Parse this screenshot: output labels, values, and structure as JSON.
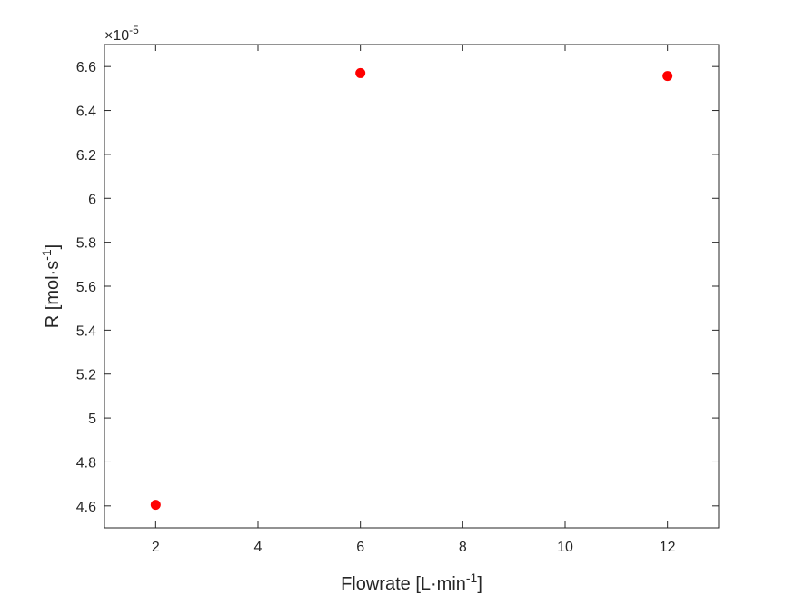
{
  "chart_data": {
    "type": "scatter",
    "x": [
      2,
      6,
      12
    ],
    "y": [
      4.605,
      6.57,
      6.557
    ],
    "y_multiplier_label": "×10",
    "y_multiplier_exp": "-5",
    "xlabel": "Flowrate [L·min",
    "xlabel_sup": "-1",
    "xlabel_tail": "]",
    "ylabel": "R [mol·s",
    "ylabel_sup": "-1",
    "ylabel_tail": "]",
    "xlim": [
      1,
      13
    ],
    "ylim": [
      4.5,
      6.7
    ],
    "xticks": [
      2,
      4,
      6,
      8,
      10,
      12
    ],
    "yticks": [
      4.6,
      4.8,
      5,
      5.2,
      5.4,
      5.6,
      5.8,
      6,
      6.2,
      6.4,
      6.6
    ],
    "xtick_labels": [
      "2",
      "4",
      "6",
      "8",
      "10",
      "12"
    ],
    "ytick_labels": [
      "4.6",
      "4.8",
      "5",
      "5.2",
      "5.4",
      "5.6",
      "5.8",
      "6",
      "6.2",
      "6.4",
      "6.6"
    ],
    "marker_color": "#ff0000",
    "axis_color": "#262626",
    "grid": false,
    "legend": "none"
  }
}
